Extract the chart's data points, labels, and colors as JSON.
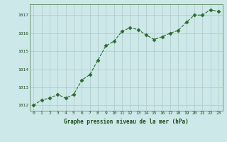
{
  "x": [
    0,
    1,
    2,
    3,
    4,
    5,
    6,
    7,
    8,
    9,
    10,
    11,
    12,
    13,
    14,
    15,
    16,
    17,
    18,
    19,
    20,
    21,
    22,
    23
  ],
  "y": [
    1012.0,
    1012.3,
    1012.4,
    1012.6,
    1012.4,
    1012.6,
    1013.4,
    1013.7,
    1014.5,
    1015.3,
    1015.55,
    1016.1,
    1016.3,
    1016.2,
    1015.9,
    1015.65,
    1015.8,
    1016.0,
    1016.15,
    1016.6,
    1017.0,
    1017.0,
    1017.3,
    1017.2
  ],
  "line_color": "#2d6a2d",
  "marker": "D",
  "marker_size": 2.5,
  "bg_color": "#cce8e8",
  "grid_color": "#b0c8c8",
  "xlabel": "Graphe pression niveau de la mer (hPa)",
  "xlabel_color": "#1a4a1a",
  "tick_color": "#1a4a1a",
  "xlim": [
    -0.5,
    23.5
  ],
  "ylim": [
    1011.7,
    1017.6
  ],
  "yticks": [
    1012,
    1013,
    1014,
    1015,
    1016,
    1017
  ],
  "xticks": [
    0,
    1,
    2,
    3,
    4,
    5,
    6,
    7,
    8,
    9,
    10,
    11,
    12,
    13,
    14,
    15,
    16,
    17,
    18,
    19,
    20,
    21,
    22,
    23
  ]
}
